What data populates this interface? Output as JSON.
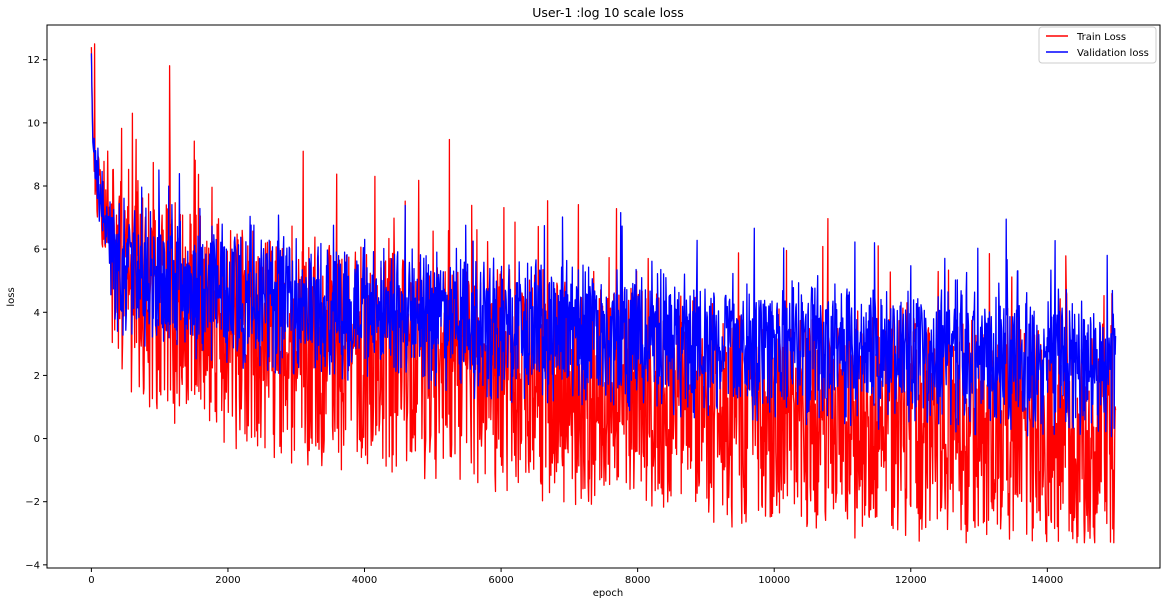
{
  "chart_data": {
    "type": "line",
    "title": "User-1 :log 10 scale loss",
    "xlabel": "epoch",
    "ylabel": "loss",
    "xlim": [
      -650,
      15650
    ],
    "ylim": [
      -4.1,
      13.1
    ],
    "x_ticks": [
      0,
      2000,
      4000,
      6000,
      8000,
      10000,
      12000,
      14000
    ],
    "y_ticks": [
      -4,
      -2,
      0,
      2,
      4,
      6,
      8,
      10,
      12
    ],
    "grid": false,
    "legend_position": "upper right",
    "series": [
      {
        "name": "Train Loss",
        "color": "#ff0000",
        "x": [
          0,
          20,
          60,
          100,
          200,
          300,
          500,
          700,
          1000,
          1300,
          1600,
          2000,
          2400,
          2800,
          3200,
          3600,
          4000,
          4400,
          4800,
          5200,
          5600,
          6000,
          6500,
          7000,
          7500,
          8000,
          8500,
          9000,
          9500,
          10000,
          10500,
          11000,
          11500,
          12000,
          12500,
          13000,
          13500,
          14000,
          14500,
          15000
        ],
        "values": [
          12.4,
          9.6,
          8.6,
          8.0,
          7.0,
          6.2,
          5.4,
          5.0,
          4.6,
          4.2,
          4.0,
          3.6,
          3.4,
          3.2,
          3.0,
          3.0,
          2.8,
          2.8,
          2.6,
          2.4,
          2.4,
          2.2,
          2.0,
          1.8,
          1.8,
          1.6,
          1.5,
          1.3,
          1.1,
          1.0,
          0.9,
          0.8,
          0.8,
          0.6,
          0.6,
          0.5,
          0.5,
          0.4,
          0.3,
          0.1
        ]
      },
      {
        "name": "Validation loss",
        "color": "#0000ff",
        "x": [
          0,
          20,
          60,
          100,
          200,
          300,
          500,
          700,
          1000,
          1300,
          1600,
          2000,
          2400,
          2800,
          3200,
          3600,
          4000,
          4400,
          4800,
          5200,
          5600,
          6000,
          6500,
          7000,
          7500,
          8000,
          8500,
          9000,
          9500,
          10000,
          10500,
          11000,
          11500,
          12000,
          12500,
          13000,
          13500,
          14000,
          14500,
          15000
        ],
        "values": [
          12.2,
          9.4,
          8.5,
          7.6,
          6.9,
          6.0,
          5.6,
          5.4,
          5.2,
          5.0,
          5.0,
          4.8,
          4.6,
          4.4,
          4.4,
          4.2,
          4.1,
          4.0,
          4.0,
          3.9,
          3.8,
          3.7,
          3.6,
          3.6,
          3.4,
          3.3,
          3.2,
          3.1,
          3.1,
          3.0,
          2.9,
          2.9,
          2.8,
          2.8,
          2.7,
          2.6,
          2.6,
          2.5,
          2.4,
          2.4
        ]
      }
    ]
  }
}
